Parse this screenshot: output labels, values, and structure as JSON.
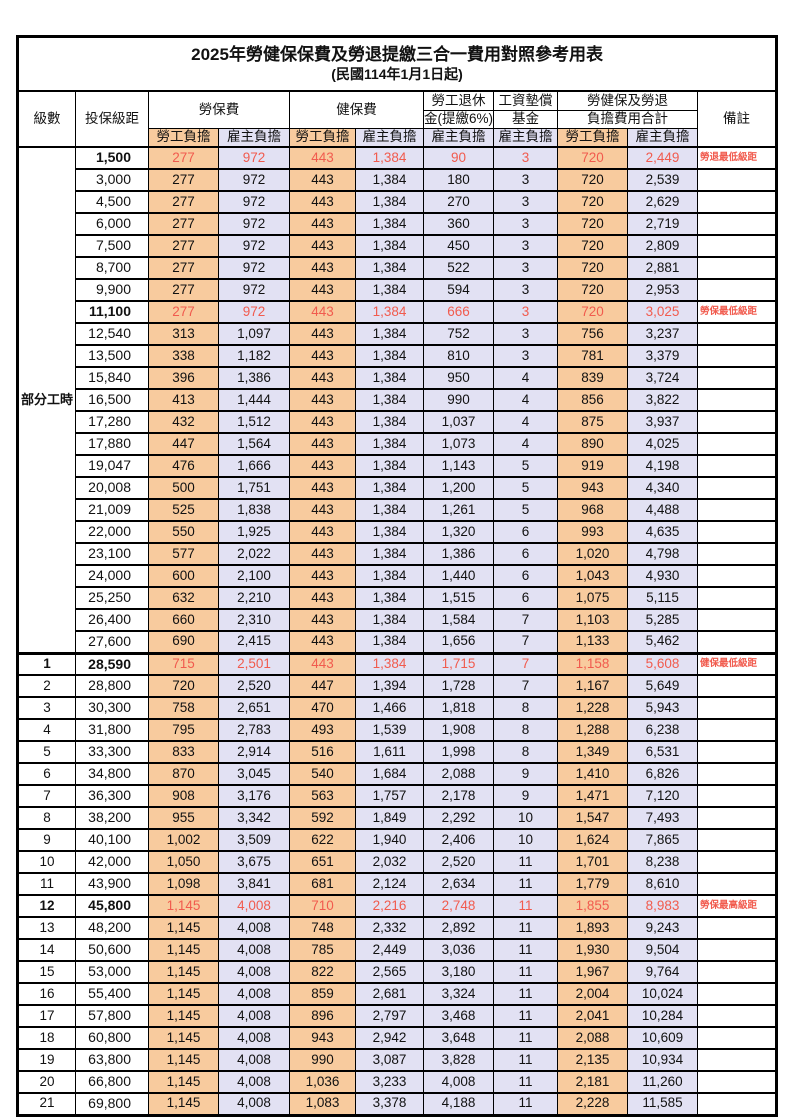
{
  "title": "2025年勞健保保費及勞退提繳三合一費用對照參考用表",
  "subtitle": "(民國114年1月1日起)",
  "colors": {
    "employee_bg": "#F8CB9E",
    "employer_bg": "#E2E1F3",
    "highlight_text": "#F15B4E",
    "border": "#000000"
  },
  "header": {
    "grade": "級數",
    "bracket": "投保級距",
    "labor_ins": "勞保費",
    "health_ins": "健保費",
    "pension_line1": "勞工退休",
    "pension_line2": "金(提繳6%)",
    "wage_fund_line1": "工資墊償",
    "wage_fund_line2": "基金",
    "total_line1": "勞健保及勞退",
    "total_line2": "負擔費用合計",
    "remark": "備註",
    "employee": "勞工負擔",
    "employer": "雇主負擔"
  },
  "part_time_label": "部分工時",
  "rows": [
    {
      "grade": "",
      "bracket": "1,500",
      "labor_emp": "277",
      "labor_er": "972",
      "health_emp": "443",
      "health_er": "1,384",
      "pension_er": "90",
      "fund_er": "3",
      "total_emp": "720",
      "total_er": "2,449",
      "remark": "勞退最低級距",
      "highlight": true
    },
    {
      "grade": "",
      "bracket": "3,000",
      "labor_emp": "277",
      "labor_er": "972",
      "health_emp": "443",
      "health_er": "1,384",
      "pension_er": "180",
      "fund_er": "3",
      "total_emp": "720",
      "total_er": "2,539",
      "remark": "",
      "highlight": false
    },
    {
      "grade": "",
      "bracket": "4,500",
      "labor_emp": "277",
      "labor_er": "972",
      "health_emp": "443",
      "health_er": "1,384",
      "pension_er": "270",
      "fund_er": "3",
      "total_emp": "720",
      "total_er": "2,629",
      "remark": "",
      "highlight": false
    },
    {
      "grade": "",
      "bracket": "6,000",
      "labor_emp": "277",
      "labor_er": "972",
      "health_emp": "443",
      "health_er": "1,384",
      "pension_er": "360",
      "fund_er": "3",
      "total_emp": "720",
      "total_er": "2,719",
      "remark": "",
      "highlight": false
    },
    {
      "grade": "",
      "bracket": "7,500",
      "labor_emp": "277",
      "labor_er": "972",
      "health_emp": "443",
      "health_er": "1,384",
      "pension_er": "450",
      "fund_er": "3",
      "total_emp": "720",
      "total_er": "2,809",
      "remark": "",
      "highlight": false
    },
    {
      "grade": "",
      "bracket": "8,700",
      "labor_emp": "277",
      "labor_er": "972",
      "health_emp": "443",
      "health_er": "1,384",
      "pension_er": "522",
      "fund_er": "3",
      "total_emp": "720",
      "total_er": "2,881",
      "remark": "",
      "highlight": false
    },
    {
      "grade": "",
      "bracket": "9,900",
      "labor_emp": "277",
      "labor_er": "972",
      "health_emp": "443",
      "health_er": "1,384",
      "pension_er": "594",
      "fund_er": "3",
      "total_emp": "720",
      "total_er": "2,953",
      "remark": "",
      "highlight": false
    },
    {
      "grade": "",
      "bracket": "11,100",
      "labor_emp": "277",
      "labor_er": "972",
      "health_emp": "443",
      "health_er": "1,384",
      "pension_er": "666",
      "fund_er": "3",
      "total_emp": "720",
      "total_er": "3,025",
      "remark": "勞保最低級距",
      "highlight": true
    },
    {
      "grade": "",
      "bracket": "12,540",
      "labor_emp": "313",
      "labor_er": "1,097",
      "health_emp": "443",
      "health_er": "1,384",
      "pension_er": "752",
      "fund_er": "3",
      "total_emp": "756",
      "total_er": "3,237",
      "remark": "",
      "highlight": false
    },
    {
      "grade": "",
      "bracket": "13,500",
      "labor_emp": "338",
      "labor_er": "1,182",
      "health_emp": "443",
      "health_er": "1,384",
      "pension_er": "810",
      "fund_er": "3",
      "total_emp": "781",
      "total_er": "3,379",
      "remark": "",
      "highlight": false
    },
    {
      "grade": "",
      "bracket": "15,840",
      "labor_emp": "396",
      "labor_er": "1,386",
      "health_emp": "443",
      "health_er": "1,384",
      "pension_er": "950",
      "fund_er": "4",
      "total_emp": "839",
      "total_er": "3,724",
      "remark": "",
      "highlight": false
    },
    {
      "grade": "",
      "bracket": "16,500",
      "labor_emp": "413",
      "labor_er": "1,444",
      "health_emp": "443",
      "health_er": "1,384",
      "pension_er": "990",
      "fund_er": "4",
      "total_emp": "856",
      "total_er": "3,822",
      "remark": "",
      "highlight": false
    },
    {
      "grade": "",
      "bracket": "17,280",
      "labor_emp": "432",
      "labor_er": "1,512",
      "health_emp": "443",
      "health_er": "1,384",
      "pension_er": "1,037",
      "fund_er": "4",
      "total_emp": "875",
      "total_er": "3,937",
      "remark": "",
      "highlight": false
    },
    {
      "grade": "",
      "bracket": "17,880",
      "labor_emp": "447",
      "labor_er": "1,564",
      "health_emp": "443",
      "health_er": "1,384",
      "pension_er": "1,073",
      "fund_er": "4",
      "total_emp": "890",
      "total_er": "4,025",
      "remark": "",
      "highlight": false
    },
    {
      "grade": "",
      "bracket": "19,047",
      "labor_emp": "476",
      "labor_er": "1,666",
      "health_emp": "443",
      "health_er": "1,384",
      "pension_er": "1,143",
      "fund_er": "5",
      "total_emp": "919",
      "total_er": "4,198",
      "remark": "",
      "highlight": false
    },
    {
      "grade": "",
      "bracket": "20,008",
      "labor_emp": "500",
      "labor_er": "1,751",
      "health_emp": "443",
      "health_er": "1,384",
      "pension_er": "1,200",
      "fund_er": "5",
      "total_emp": "943",
      "total_er": "4,340",
      "remark": "",
      "highlight": false
    },
    {
      "grade": "",
      "bracket": "21,009",
      "labor_emp": "525",
      "labor_er": "1,838",
      "health_emp": "443",
      "health_er": "1,384",
      "pension_er": "1,261",
      "fund_er": "5",
      "total_emp": "968",
      "total_er": "4,488",
      "remark": "",
      "highlight": false
    },
    {
      "grade": "",
      "bracket": "22,000",
      "labor_emp": "550",
      "labor_er": "1,925",
      "health_emp": "443",
      "health_er": "1,384",
      "pension_er": "1,320",
      "fund_er": "6",
      "total_emp": "993",
      "total_er": "4,635",
      "remark": "",
      "highlight": false
    },
    {
      "grade": "",
      "bracket": "23,100",
      "labor_emp": "577",
      "labor_er": "2,022",
      "health_emp": "443",
      "health_er": "1,384",
      "pension_er": "1,386",
      "fund_er": "6",
      "total_emp": "1,020",
      "total_er": "4,798",
      "remark": "",
      "highlight": false
    },
    {
      "grade": "",
      "bracket": "24,000",
      "labor_emp": "600",
      "labor_er": "2,100",
      "health_emp": "443",
      "health_er": "1,384",
      "pension_er": "1,440",
      "fund_er": "6",
      "total_emp": "1,043",
      "total_er": "4,930",
      "remark": "",
      "highlight": false
    },
    {
      "grade": "",
      "bracket": "25,250",
      "labor_emp": "632",
      "labor_er": "2,210",
      "health_emp": "443",
      "health_er": "1,384",
      "pension_er": "1,515",
      "fund_er": "6",
      "total_emp": "1,075",
      "total_er": "5,115",
      "remark": "",
      "highlight": false
    },
    {
      "grade": "",
      "bracket": "26,400",
      "labor_emp": "660",
      "labor_er": "2,310",
      "health_emp": "443",
      "health_er": "1,384",
      "pension_er": "1,584",
      "fund_er": "7",
      "total_emp": "1,103",
      "total_er": "5,285",
      "remark": "",
      "highlight": false
    },
    {
      "grade": "",
      "bracket": "27,600",
      "labor_emp": "690",
      "labor_er": "2,415",
      "health_emp": "443",
      "health_er": "1,384",
      "pension_er": "1,656",
      "fund_er": "7",
      "total_emp": "1,133",
      "total_er": "5,462",
      "remark": "",
      "highlight": false
    },
    {
      "grade": "1",
      "bracket": "28,590",
      "labor_emp": "715",
      "labor_er": "2,501",
      "health_emp": "443",
      "health_er": "1,384",
      "pension_er": "1,715",
      "fund_er": "7",
      "total_emp": "1,158",
      "total_er": "5,608",
      "remark": "健保最低級距",
      "highlight": true
    },
    {
      "grade": "2",
      "bracket": "28,800",
      "labor_emp": "720",
      "labor_er": "2,520",
      "health_emp": "447",
      "health_er": "1,394",
      "pension_er": "1,728",
      "fund_er": "7",
      "total_emp": "1,167",
      "total_er": "5,649",
      "remark": "",
      "highlight": false
    },
    {
      "grade": "3",
      "bracket": "30,300",
      "labor_emp": "758",
      "labor_er": "2,651",
      "health_emp": "470",
      "health_er": "1,466",
      "pension_er": "1,818",
      "fund_er": "8",
      "total_emp": "1,228",
      "total_er": "5,943",
      "remark": "",
      "highlight": false
    },
    {
      "grade": "4",
      "bracket": "31,800",
      "labor_emp": "795",
      "labor_er": "2,783",
      "health_emp": "493",
      "health_er": "1,539",
      "pension_er": "1,908",
      "fund_er": "8",
      "total_emp": "1,288",
      "total_er": "6,238",
      "remark": "",
      "highlight": false
    },
    {
      "grade": "5",
      "bracket": "33,300",
      "labor_emp": "833",
      "labor_er": "2,914",
      "health_emp": "516",
      "health_er": "1,611",
      "pension_er": "1,998",
      "fund_er": "8",
      "total_emp": "1,349",
      "total_er": "6,531",
      "remark": "",
      "highlight": false
    },
    {
      "grade": "6",
      "bracket": "34,800",
      "labor_emp": "870",
      "labor_er": "3,045",
      "health_emp": "540",
      "health_er": "1,684",
      "pension_er": "2,088",
      "fund_er": "9",
      "total_emp": "1,410",
      "total_er": "6,826",
      "remark": "",
      "highlight": false
    },
    {
      "grade": "7",
      "bracket": "36,300",
      "labor_emp": "908",
      "labor_er": "3,176",
      "health_emp": "563",
      "health_er": "1,757",
      "pension_er": "2,178",
      "fund_er": "9",
      "total_emp": "1,471",
      "total_er": "7,120",
      "remark": "",
      "highlight": false
    },
    {
      "grade": "8",
      "bracket": "38,200",
      "labor_emp": "955",
      "labor_er": "3,342",
      "health_emp": "592",
      "health_er": "1,849",
      "pension_er": "2,292",
      "fund_er": "10",
      "total_emp": "1,547",
      "total_er": "7,493",
      "remark": "",
      "highlight": false
    },
    {
      "grade": "9",
      "bracket": "40,100",
      "labor_emp": "1,002",
      "labor_er": "3,509",
      "health_emp": "622",
      "health_er": "1,940",
      "pension_er": "2,406",
      "fund_er": "10",
      "total_emp": "1,624",
      "total_er": "7,865",
      "remark": "",
      "highlight": false
    },
    {
      "grade": "10",
      "bracket": "42,000",
      "labor_emp": "1,050",
      "labor_er": "3,675",
      "health_emp": "651",
      "health_er": "2,032",
      "pension_er": "2,520",
      "fund_er": "11",
      "total_emp": "1,701",
      "total_er": "8,238",
      "remark": "",
      "highlight": false
    },
    {
      "grade": "11",
      "bracket": "43,900",
      "labor_emp": "1,098",
      "labor_er": "3,841",
      "health_emp": "681",
      "health_er": "2,124",
      "pension_er": "2,634",
      "fund_er": "11",
      "total_emp": "1,779",
      "total_er": "8,610",
      "remark": "",
      "highlight": false
    },
    {
      "grade": "12",
      "bracket": "45,800",
      "labor_emp": "1,145",
      "labor_er": "4,008",
      "health_emp": "710",
      "health_er": "2,216",
      "pension_er": "2,748",
      "fund_er": "11",
      "total_emp": "1,855",
      "total_er": "8,983",
      "remark": "勞保最高級距",
      "highlight": true
    },
    {
      "grade": "13",
      "bracket": "48,200",
      "labor_emp": "1,145",
      "labor_er": "4,008",
      "health_emp": "748",
      "health_er": "2,332",
      "pension_er": "2,892",
      "fund_er": "11",
      "total_emp": "1,893",
      "total_er": "9,243",
      "remark": "",
      "highlight": false
    },
    {
      "grade": "14",
      "bracket": "50,600",
      "labor_emp": "1,145",
      "labor_er": "4,008",
      "health_emp": "785",
      "health_er": "2,449",
      "pension_er": "3,036",
      "fund_er": "11",
      "total_emp": "1,930",
      "total_er": "9,504",
      "remark": "",
      "highlight": false
    },
    {
      "grade": "15",
      "bracket": "53,000",
      "labor_emp": "1,145",
      "labor_er": "4,008",
      "health_emp": "822",
      "health_er": "2,565",
      "pension_er": "3,180",
      "fund_er": "11",
      "total_emp": "1,967",
      "total_er": "9,764",
      "remark": "",
      "highlight": false
    },
    {
      "grade": "16",
      "bracket": "55,400",
      "labor_emp": "1,145",
      "labor_er": "4,008",
      "health_emp": "859",
      "health_er": "2,681",
      "pension_er": "3,324",
      "fund_er": "11",
      "total_emp": "2,004",
      "total_er": "10,024",
      "remark": "",
      "highlight": false
    },
    {
      "grade": "17",
      "bracket": "57,800",
      "labor_emp": "1,145",
      "labor_er": "4,008",
      "health_emp": "896",
      "health_er": "2,797",
      "pension_er": "3,468",
      "fund_er": "11",
      "total_emp": "2,041",
      "total_er": "10,284",
      "remark": "",
      "highlight": false
    },
    {
      "grade": "18",
      "bracket": "60,800",
      "labor_emp": "1,145",
      "labor_er": "4,008",
      "health_emp": "943",
      "health_er": "2,942",
      "pension_er": "3,648",
      "fund_er": "11",
      "total_emp": "2,088",
      "total_er": "10,609",
      "remark": "",
      "highlight": false
    },
    {
      "grade": "19",
      "bracket": "63,800",
      "labor_emp": "1,145",
      "labor_er": "4,008",
      "health_emp": "990",
      "health_er": "3,087",
      "pension_er": "3,828",
      "fund_er": "11",
      "total_emp": "2,135",
      "total_er": "10,934",
      "remark": "",
      "highlight": false
    },
    {
      "grade": "20",
      "bracket": "66,800",
      "labor_emp": "1,145",
      "labor_er": "4,008",
      "health_emp": "1,036",
      "health_er": "3,233",
      "pension_er": "4,008",
      "fund_er": "11",
      "total_emp": "2,181",
      "total_er": "11,260",
      "remark": "",
      "highlight": false
    },
    {
      "grade": "21",
      "bracket": "69,800",
      "labor_emp": "1,145",
      "labor_er": "4,008",
      "health_emp": "1,083",
      "health_er": "3,378",
      "pension_er": "4,188",
      "fund_er": "11",
      "total_emp": "2,228",
      "total_er": "11,585",
      "remark": "",
      "highlight": false
    }
  ]
}
